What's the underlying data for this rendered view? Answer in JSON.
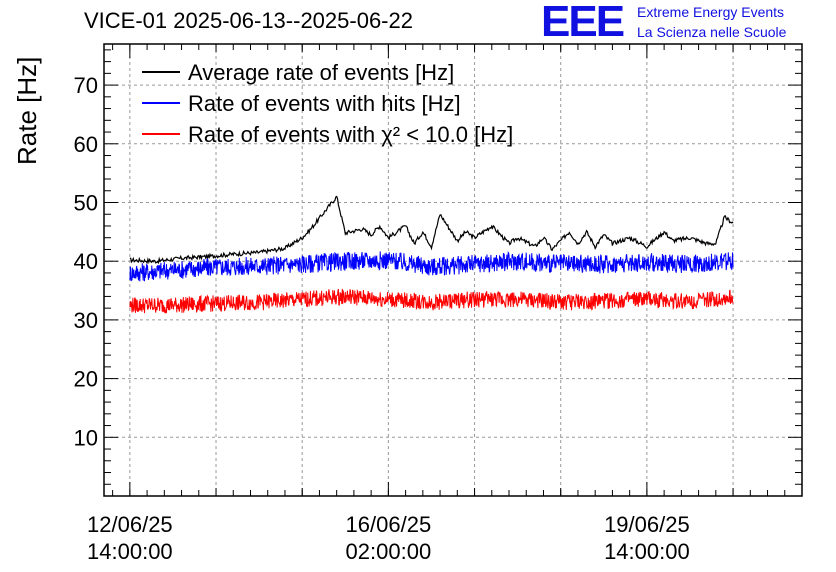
{
  "chart_data": {
    "type": "line",
    "title": "VICE-01 2025-06-13--2025-06-22",
    "ylabel": "Rate [Hz]",
    "xlabel": "",
    "ylim": [
      0,
      77
    ],
    "xlim_hours": [
      -6,
      156
    ],
    "yticks": [
      10,
      20,
      30,
      40,
      50,
      60,
      70
    ],
    "xticks": [
      {
        "hours": 0,
        "date": "12/06/25",
        "time": "14:00:00"
      },
      {
        "hours": 60,
        "date": "16/06/25",
        "time": "02:00:00"
      },
      {
        "hours": 120,
        "date": "19/06/25",
        "time": "14:00:00"
      }
    ],
    "grid": true,
    "legend_position": "top-left",
    "series": [
      {
        "name": "Average rate of events [Hz]",
        "color": "#000000",
        "x_hours": [
          0,
          6,
          12,
          18,
          24,
          30,
          36,
          40,
          42,
          48,
          50,
          54,
          56,
          58,
          60,
          64,
          66,
          68,
          70,
          72,
          76,
          78,
          80,
          84,
          88,
          90,
          94,
          96,
          98,
          100,
          102,
          104,
          106,
          108,
          110,
          112,
          116,
          120,
          124,
          126,
          130,
          134,
          136,
          138,
          140
        ],
        "values": [
          40.2,
          40.0,
          40.5,
          40.8,
          41.2,
          41.5,
          42.2,
          44.0,
          45.5,
          51.0,
          44.8,
          45.5,
          44.5,
          46.0,
          44.0,
          46.0,
          43.0,
          45.0,
          42.5,
          48.0,
          43.5,
          45.0,
          44.0,
          46.0,
          43.0,
          44.0,
          42.5,
          44.0,
          42.0,
          43.5,
          45.0,
          43.0,
          45.0,
          42.5,
          44.5,
          43.0,
          44.0,
          42.5,
          45.0,
          43.5,
          44.0,
          43.0,
          43.0,
          47.5,
          46.5
        ]
      },
      {
        "name": "Rate of events with hits [Hz]",
        "color": "#0000ff",
        "x_hours": [
          0,
          10,
          20,
          30,
          40,
          50,
          60,
          70,
          80,
          90,
          100,
          110,
          120,
          130,
          140
        ],
        "values": [
          38.0,
          38.5,
          39.0,
          39.2,
          39.5,
          40.0,
          40.2,
          39.0,
          39.5,
          40.0,
          39.5,
          39.5,
          39.8,
          39.5,
          40.0
        ]
      },
      {
        "name": "Rate of events with χ² < 10.0 [Hz]",
        "color": "#ff0000",
        "x_hours": [
          0,
          10,
          20,
          30,
          40,
          50,
          60,
          70,
          80,
          90,
          100,
          110,
          120,
          130,
          140
        ],
        "values": [
          32.5,
          32.5,
          32.8,
          33.0,
          33.5,
          34.0,
          33.5,
          33.0,
          33.5,
          33.5,
          33.0,
          33.2,
          33.5,
          33.2,
          33.8
        ]
      }
    ]
  },
  "branding": {
    "logo_text": "EEE",
    "line1": "Extreme Energy Events",
    "line2": "La Scienza nelle Scuole"
  }
}
